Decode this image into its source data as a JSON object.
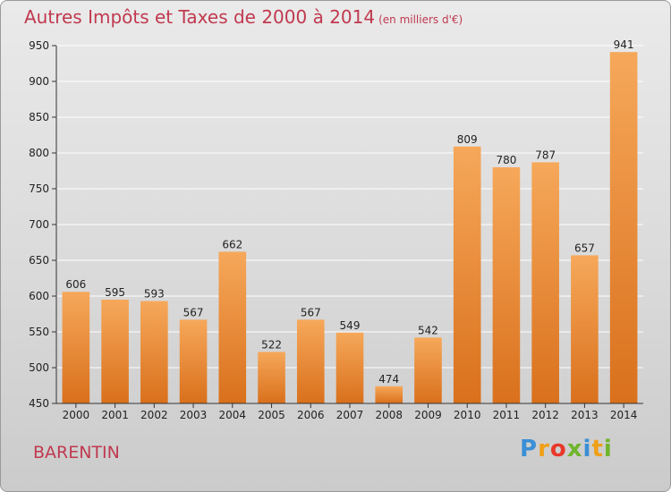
{
  "title": "Autres Impôts et Taxes de 2000 à 2014",
  "title_unit": "(en milliers d'€)",
  "town": "BARENTIN",
  "logo": {
    "letters": [
      {
        "ch": "P",
        "color": "#3a8fd6"
      },
      {
        "ch": "r",
        "color": "#f0a018"
      },
      {
        "ch": "o",
        "color": "#e8382a"
      },
      {
        "ch": "x",
        "color": "#6fb52c"
      },
      {
        "ch": "i",
        "color": "#3a8fd6"
      },
      {
        "ch": "t",
        "color": "#f0a018"
      },
      {
        "ch": "i",
        "color": "#6fb52c"
      }
    ]
  },
  "chart_data": {
    "type": "bar",
    "title": "Autres Impôts et Taxes de 2000 à 2014",
    "subtitle": "(en milliers d'€)",
    "xlabel": "",
    "ylabel": "",
    "categories": [
      "2000",
      "2001",
      "2002",
      "2003",
      "2004",
      "2005",
      "2006",
      "2007",
      "2008",
      "2009",
      "2010",
      "2011",
      "2012",
      "2013",
      "2014"
    ],
    "values": [
      606,
      595,
      593,
      567,
      662,
      522,
      567,
      549,
      474,
      542,
      809,
      780,
      787,
      657,
      941
    ],
    "ylim": [
      450,
      950
    ],
    "yticks": [
      450,
      500,
      550,
      600,
      650,
      700,
      750,
      800,
      850,
      900,
      950
    ],
    "grid": true,
    "bar_color_top": "#f6a85a",
    "bar_color_bottom": "#d9701c"
  }
}
